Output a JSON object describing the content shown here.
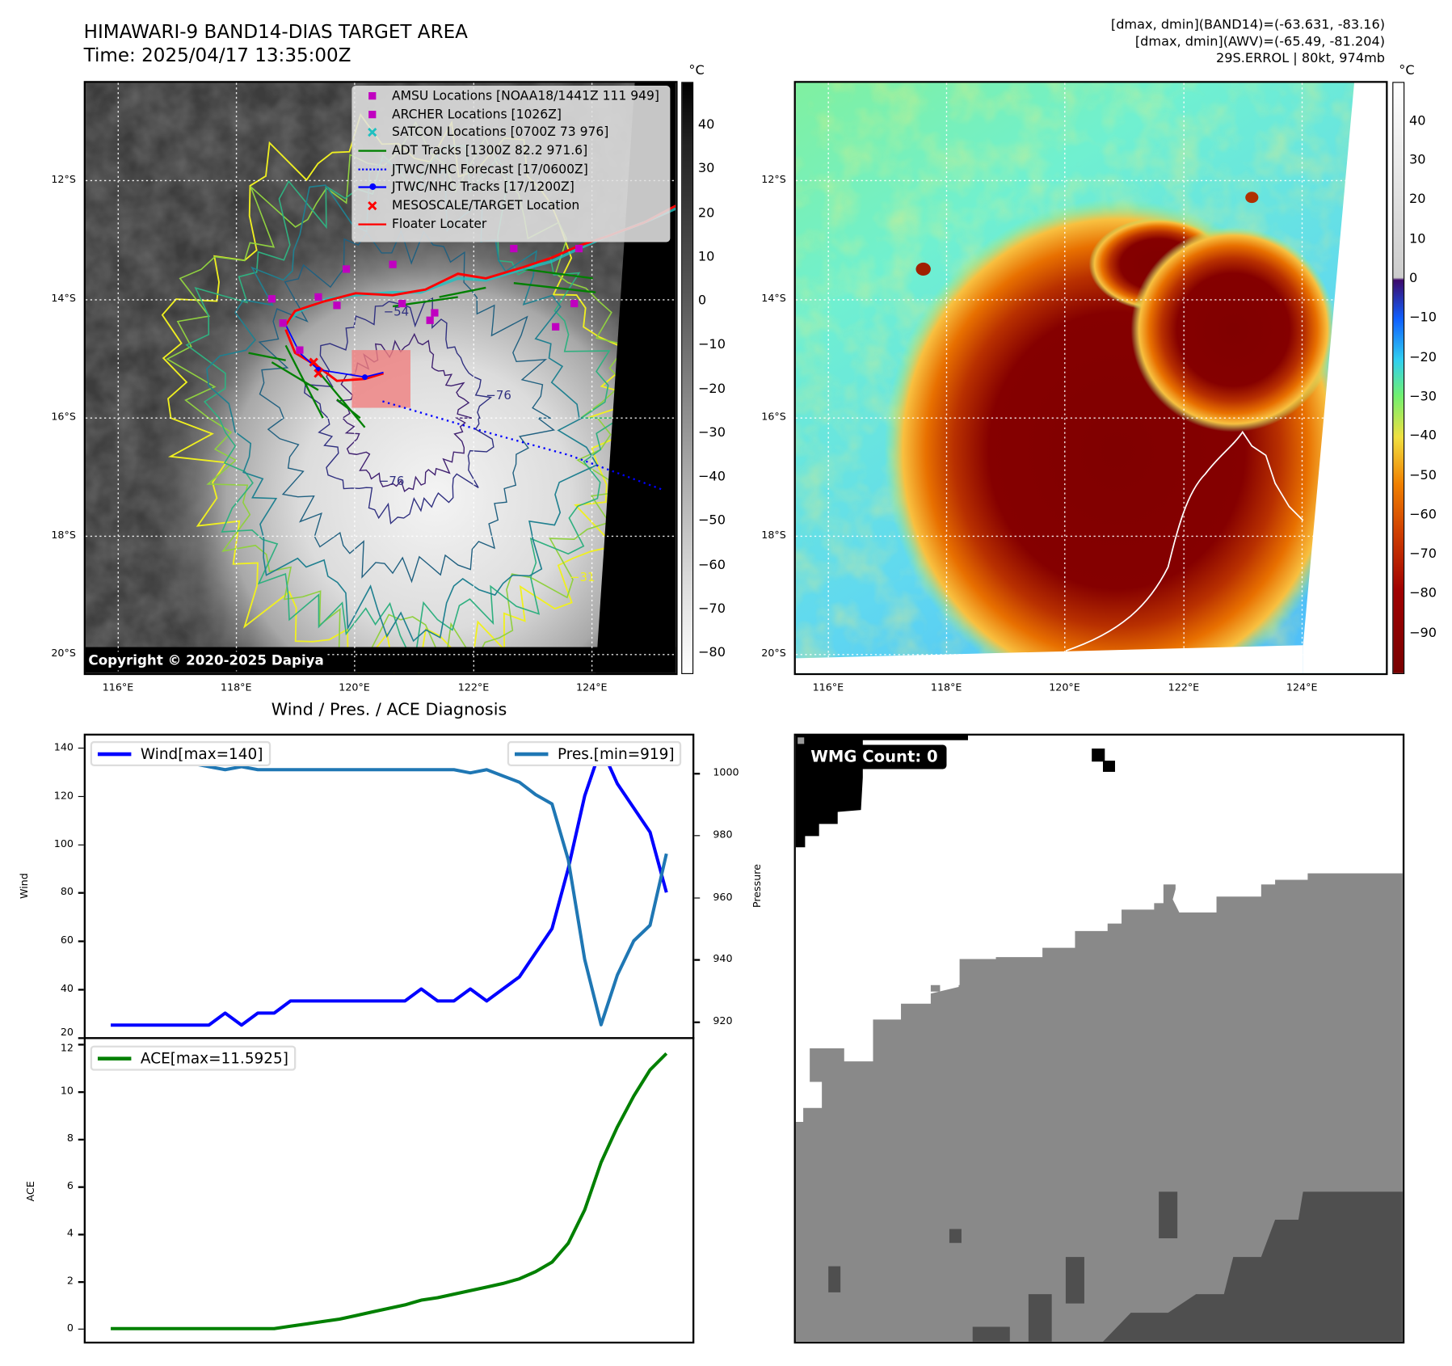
{
  "header": {
    "title": "HIMAWARI-9 BAND14-DIAS TARGET AREA",
    "time": "Time: 2025/04/17 13:35:00Z",
    "stats": [
      "[dmax, dmin](BAND14)=(-63.631, -83.16)",
      "[dmax, dmin](AWV)=(-65.49, -81.204)",
      "29S.ERROL | 80kt, 974mb"
    ]
  },
  "map_left": {
    "unit": "°C",
    "lat_ticks": [
      "12°S",
      "14°S",
      "16°S",
      "18°S",
      "20°S"
    ],
    "lon_ticks": [
      "116°E",
      "118°E",
      "120°E",
      "122°E",
      "124°E"
    ],
    "colorbar_ticks": [
      "40",
      "30",
      "20",
      "10",
      "0",
      "−10",
      "−20",
      "−30",
      "−40",
      "−50",
      "−60",
      "−70",
      "−80"
    ],
    "colorbar_values": [
      40,
      30,
      20,
      10,
      0,
      -10,
      -20,
      -30,
      -40,
      -50,
      -60,
      -70,
      -80
    ],
    "contour_labels": [
      "−76",
      "−76",
      "−31",
      "−54"
    ],
    "copyright": "Copyright © 2020-2025 Dapiya",
    "legend": [
      {
        "label": "AMSU Locations [NOAA18/1441Z 111 949]",
        "icon": "magenta-square",
        "color": "#c000c0"
      },
      {
        "label": "ARCHER Locations [1026Z]",
        "icon": "magenta-square",
        "color": "#c000c0"
      },
      {
        "label": "SATCON Locations [0700Z 73 976]",
        "icon": "cyan-x",
        "color": "#20c0c0"
      },
      {
        "label": "ADT Tracks [1300Z 82.2 971.6]",
        "icon": "green-line",
        "color": "#008000"
      },
      {
        "label": "JTWC/NHC Forecast [17/0600Z]",
        "icon": "blue-dotted-line",
        "color": "#0000ff"
      },
      {
        "label": "JTWC/NHC Tracks [17/1200Z]",
        "icon": "blue-line-dot",
        "color": "#0000ff"
      },
      {
        "label": "MESOSCALE/TARGET Location",
        "icon": "red-x",
        "color": "#ff0000"
      },
      {
        "label": "Floater Locater",
        "icon": "red-line",
        "color": "#ff0000"
      }
    ]
  },
  "map_right": {
    "unit": "°C",
    "lat_ticks": [
      "12°S",
      "14°S",
      "16°S",
      "18°S",
      "20°S"
    ],
    "lon_ticks": [
      "116°E",
      "118°E",
      "120°E",
      "122°E",
      "124°E"
    ],
    "colorbar_ticks": [
      "40",
      "30",
      "20",
      "10",
      "0",
      "−10",
      "−20",
      "−30",
      "−40",
      "−50",
      "−60",
      "−70",
      "−80",
      "−90"
    ],
    "colorbar_values": [
      40,
      30,
      20,
      10,
      0,
      -10,
      -20,
      -30,
      -40,
      -50,
      -60,
      -70,
      -80,
      -90
    ]
  },
  "wmg": {
    "label": "WMG Count: 0"
  },
  "chart_data": [
    {
      "type": "line",
      "title": "Wind / Pres. / ACE Diagnosis",
      "ylabel": "Wind",
      "ylabel_right": "Pressure",
      "ylim": [
        20,
        145
      ],
      "ylim_right": [
        915,
        1012
      ],
      "yticks": [
        20,
        40,
        60,
        80,
        100,
        120,
        140
      ],
      "yticks_right": [
        920,
        940,
        960,
        980,
        1000
      ],
      "series": [
        {
          "name": "Wind[max=140]",
          "axis": "left",
          "color": "#0000ff",
          "values": [
            25,
            25,
            25,
            25,
            25,
            25,
            25,
            30,
            25,
            30,
            30,
            35,
            35,
            35,
            35,
            35,
            35,
            35,
            35,
            40,
            35,
            35,
            40,
            35,
            40,
            45,
            55,
            65,
            90,
            120,
            140,
            125,
            115,
            105,
            80
          ]
        },
        {
          "name": "Pres.[min=919]",
          "axis": "right",
          "color": "#1f77b4",
          "values": [
            1009,
            1007,
            1007,
            1006,
            1006,
            1003,
            1002,
            1001,
            1002,
            1001,
            1001,
            1001,
            1001,
            1001,
            1001,
            1001,
            1001,
            1001,
            1001,
            1001,
            1001,
            1001,
            1000,
            1001,
            999,
            997,
            993,
            990,
            972,
            940,
            919,
            935,
            946,
            951,
            974
          ]
        }
      ]
    },
    {
      "type": "line",
      "ylabel": "ACE",
      "ylim": [
        -0.55,
        12.2
      ],
      "yticks": [
        0,
        2,
        4,
        6,
        8,
        10,
        12
      ],
      "series": [
        {
          "name": "ACE[max=11.5925]",
          "axis": "left",
          "color": "#008000",
          "values": [
            0,
            0,
            0,
            0,
            0,
            0,
            0,
            0,
            0,
            0,
            0,
            0.1,
            0.2,
            0.3,
            0.4,
            0.55,
            0.7,
            0.85,
            1.0,
            1.2,
            1.3,
            1.45,
            1.6,
            1.75,
            1.9,
            2.1,
            2.4,
            2.8,
            3.6,
            5.0,
            7.0,
            8.5,
            9.8,
            10.9,
            11.5925
          ]
        }
      ]
    }
  ]
}
